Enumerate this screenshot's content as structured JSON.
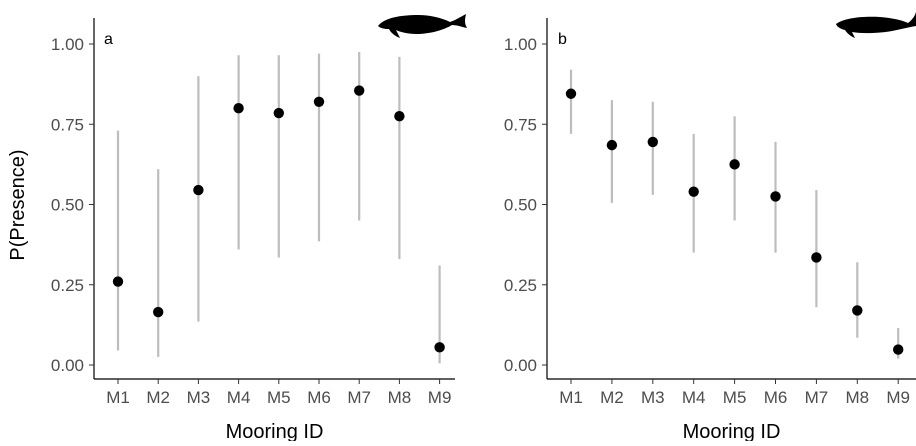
{
  "figure": {
    "ylabel": "P(Presence)",
    "colors": {
      "point": "#000000",
      "interval": "#bdbdbd",
      "tick_text": "#4d4d4d"
    },
    "icons": [
      "whale-silhouette-icon",
      "whale-silhouette-icon"
    ]
  },
  "chart_data": [
    {
      "type": "scatter",
      "panel_label": "a",
      "xlabel": "Mooring ID",
      "ylabel": "P(Presence)",
      "categories": [
        "M1",
        "M2",
        "M3",
        "M4",
        "M5",
        "M6",
        "M7",
        "M8",
        "M9"
      ],
      "values": [
        0.26,
        0.165,
        0.545,
        0.8,
        0.785,
        0.82,
        0.855,
        0.775,
        0.055
      ],
      "lower": [
        0.045,
        0.025,
        0.135,
        0.36,
        0.335,
        0.385,
        0.45,
        0.33,
        0.005
      ],
      "upper": [
        0.73,
        0.61,
        0.9,
        0.965,
        0.965,
        0.97,
        0.975,
        0.96,
        0.31
      ],
      "ylim": [
        0,
        1
      ],
      "yticks": [
        "0.00",
        "0.25",
        "0.50",
        "0.75",
        "1.00"
      ],
      "grid": false
    },
    {
      "type": "scatter",
      "panel_label": "b",
      "xlabel": "Mooring ID",
      "ylabel": "",
      "categories": [
        "M1",
        "M2",
        "M3",
        "M4",
        "M5",
        "M6",
        "M7",
        "M8",
        "M9"
      ],
      "values": [
        0.845,
        0.685,
        0.695,
        0.54,
        0.625,
        0.525,
        0.335,
        0.17,
        0.048
      ],
      "lower": [
        0.72,
        0.505,
        0.53,
        0.35,
        0.45,
        0.35,
        0.18,
        0.085,
        0.02
      ],
      "upper": [
        0.92,
        0.825,
        0.82,
        0.72,
        0.775,
        0.695,
        0.545,
        0.32,
        0.115
      ],
      "ylim": [
        0,
        1
      ],
      "yticks": [
        "0.00",
        "0.25",
        "0.50",
        "0.75",
        "1.00"
      ],
      "grid": false
    }
  ]
}
